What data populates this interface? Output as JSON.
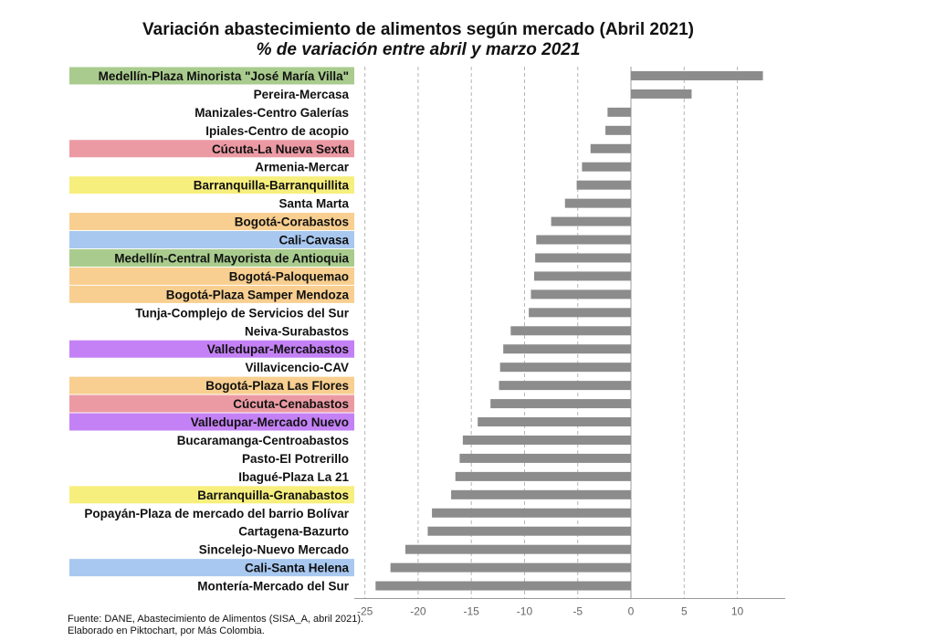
{
  "chart_data": {
    "type": "bar",
    "orientation": "horizontal",
    "title": "Variación abastecimiento de alimentos según mercado (Abril 2021)",
    "subtitle": "% de variación entre abril y marzo 2021",
    "xlabel": "",
    "ylabel": "",
    "xlim": [
      -26,
      14.5
    ],
    "xticks": [
      -25,
      -20,
      -15,
      -10,
      -5,
      0,
      5,
      10
    ],
    "grid": "vertical-dashed",
    "bar_color": "#8c8c8c",
    "categories": [
      "Medellín-Plaza Minorista \"José María Villa\"",
      "Pereira-Mercasa",
      "Manizales-Centro Galerías",
      "Ipiales-Centro de acopio",
      "Cúcuta-La Nueva Sexta",
      "Armenia-Mercar",
      "Barranquilla-Barranquillita",
      "Santa Marta",
      "Bogotá-Corabastos",
      "Cali-Cavasa",
      "Medellín-Central Mayorista de Antioquia",
      "Bogotá-Paloquemao",
      "Bogotá-Plaza Samper Mendoza",
      "Tunja-Complejo de Servicios del Sur",
      "Neiva-Surabastos",
      "Valledupar-Mercabastos",
      "Villavicencio-CAV",
      "Bogotá-Plaza Las Flores",
      "Cúcuta-Cenabastos",
      "Valledupar-Mercado Nuevo",
      "Bucaramanga-Centroabastos",
      "Pasto-El Potrerillo",
      "Ibagué-Plaza La 21",
      "Barranquilla-Granabastos",
      "Popayán-Plaza de mercado del barrio Bolívar",
      "Cartagena-Bazurto",
      "Sincelejo-Nuevo Mercado",
      "Cali-Santa Helena",
      "Montería-Mercado del Sur"
    ],
    "values": [
      12.4,
      5.7,
      -2.2,
      -2.4,
      -3.8,
      -4.6,
      -5.1,
      -6.2,
      -7.5,
      -8.9,
      -9.0,
      -9.1,
      -9.4,
      -9.6,
      -11.3,
      -12.0,
      -12.3,
      -12.4,
      -13.2,
      -14.4,
      -15.8,
      -16.1,
      -16.5,
      -16.9,
      -18.7,
      -19.1,
      -21.2,
      -22.6,
      -24.0
    ],
    "label_highlights": [
      "#a9cc8e",
      "",
      "",
      "",
      "#eb9aa4",
      "",
      "#f7ef7d",
      "",
      "#f8cf90",
      "#a8c8f0",
      "#a9cc8e",
      "#f8cf90",
      "#f8cf90",
      "",
      "",
      "#c481f5",
      "",
      "#f8cf90",
      "#eb9aa4",
      "#c481f5",
      "",
      "",
      "",
      "#f7ef7d",
      "",
      "",
      "",
      "#a8c8f0",
      ""
    ]
  },
  "source": {
    "line1": "Fuente: DANE, Abastecimiento de Alimentos (SISA_A, abril 2021).",
    "line2": "Elaborado en Piktochart, por Más Colombia."
  }
}
